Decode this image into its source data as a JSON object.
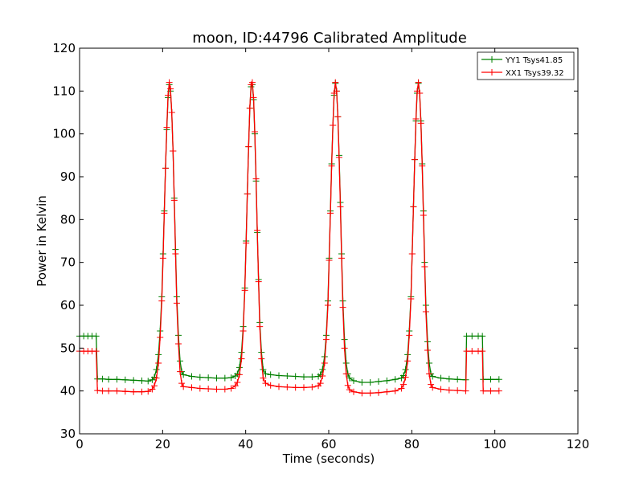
{
  "chart_data": {
    "type": "line",
    "title": "moon, ID:44796 Calibrated Amplitude",
    "xlabel": "Time (seconds)",
    "ylabel": "Power in Kelvin",
    "xlim": [
      0,
      120
    ],
    "ylim": [
      30,
      120
    ],
    "xticks": [
      "0",
      "20",
      "40",
      "60",
      "80",
      "100",
      "120"
    ],
    "yticks": [
      "30",
      "40",
      "50",
      "60",
      "70",
      "80",
      "90",
      "100",
      "110",
      "120"
    ],
    "grid": false,
    "legend_position": "top-right",
    "series": [
      {
        "name": "YY1 Tsys41.85",
        "color": "#008000",
        "points": [
          [
            0.0,
            52.8
          ],
          [
            1.0,
            52.8
          ],
          [
            2.0,
            52.8
          ],
          [
            3.0,
            52.8
          ],
          [
            4.0,
            52.8
          ],
          [
            4.3,
            42.8
          ],
          [
            5.5,
            42.8
          ],
          [
            7.0,
            42.7
          ],
          [
            9.0,
            42.7
          ],
          [
            11.0,
            42.6
          ],
          [
            13.0,
            42.5
          ],
          [
            15.0,
            42.4
          ],
          [
            16.5,
            42.3
          ],
          [
            17.5,
            42.6
          ],
          [
            18.0,
            43.2
          ],
          [
            18.5,
            45.0
          ],
          [
            19.0,
            48.5
          ],
          [
            19.4,
            54.0
          ],
          [
            19.8,
            62.0
          ],
          [
            20.1,
            72.0
          ],
          [
            20.4,
            82.0
          ],
          [
            20.7,
            92.0
          ],
          [
            21.0,
            101.0
          ],
          [
            21.3,
            108.5
          ],
          [
            21.6,
            111.5
          ],
          [
            21.9,
            110.0
          ],
          [
            22.2,
            105.0
          ],
          [
            22.5,
            96.0
          ],
          [
            22.8,
            85.0
          ],
          [
            23.1,
            73.0
          ],
          [
            23.4,
            62.0
          ],
          [
            23.8,
            53.0
          ],
          [
            24.2,
            47.0
          ],
          [
            24.6,
            44.5
          ],
          [
            25.0,
            43.8
          ],
          [
            27.0,
            43.4
          ],
          [
            29.0,
            43.2
          ],
          [
            31.0,
            43.1
          ],
          [
            33.0,
            43.0
          ],
          [
            35.0,
            43.0
          ],
          [
            36.5,
            43.1
          ],
          [
            37.5,
            43.5
          ],
          [
            38.0,
            44.0
          ],
          [
            38.5,
            45.5
          ],
          [
            39.0,
            49.0
          ],
          [
            39.4,
            55.0
          ],
          [
            39.8,
            64.0
          ],
          [
            40.1,
            75.0
          ],
          [
            40.4,
            86.0
          ],
          [
            40.7,
            97.0
          ],
          [
            41.0,
            106.0
          ],
          [
            41.3,
            111.0
          ],
          [
            41.6,
            111.5
          ],
          [
            41.9,
            108.0
          ],
          [
            42.2,
            100.0
          ],
          [
            42.5,
            89.0
          ],
          [
            42.8,
            77.0
          ],
          [
            43.1,
            66.0
          ],
          [
            43.4,
            56.0
          ],
          [
            43.8,
            49.0
          ],
          [
            44.2,
            45.0
          ],
          [
            44.8,
            44.0
          ],
          [
            46.0,
            43.8
          ],
          [
            48.0,
            43.6
          ],
          [
            50.0,
            43.5
          ],
          [
            52.0,
            43.4
          ],
          [
            54.0,
            43.3
          ],
          [
            56.0,
            43.3
          ],
          [
            57.5,
            43.4
          ],
          [
            58.0,
            43.8
          ],
          [
            58.5,
            45.0
          ],
          [
            59.0,
            48.0
          ],
          [
            59.4,
            53.0
          ],
          [
            59.8,
            61.0
          ],
          [
            60.1,
            71.0
          ],
          [
            60.4,
            82.0
          ],
          [
            60.7,
            93.0
          ],
          [
            61.0,
            102.0
          ],
          [
            61.3,
            109.0
          ],
          [
            61.6,
            111.8
          ],
          [
            61.9,
            110.0
          ],
          [
            62.2,
            104.0
          ],
          [
            62.5,
            95.0
          ],
          [
            62.8,
            84.0
          ],
          [
            63.1,
            72.0
          ],
          [
            63.4,
            61.0
          ],
          [
            63.8,
            52.0
          ],
          [
            64.2,
            46.5
          ],
          [
            64.6,
            44.0
          ],
          [
            65.0,
            43.0
          ],
          [
            66.0,
            42.4
          ],
          [
            68.0,
            42.0
          ],
          [
            70.0,
            42.0
          ],
          [
            72.0,
            42.2
          ],
          [
            74.0,
            42.4
          ],
          [
            76.0,
            42.7
          ],
          [
            77.5,
            43.0
          ],
          [
            78.0,
            43.6
          ],
          [
            78.5,
            45.0
          ],
          [
            79.0,
            48.5
          ],
          [
            79.4,
            54.0
          ],
          [
            79.8,
            62.0
          ],
          [
            80.1,
            72.0
          ],
          [
            80.4,
            83.0
          ],
          [
            80.7,
            94.0
          ],
          [
            81.0,
            103.0
          ],
          [
            81.3,
            109.5
          ],
          [
            81.6,
            111.8
          ],
          [
            81.9,
            109.5
          ],
          [
            82.2,
            103.0
          ],
          [
            82.5,
            93.0
          ],
          [
            82.8,
            82.0
          ],
          [
            83.1,
            70.0
          ],
          [
            83.4,
            60.0
          ],
          [
            83.8,
            51.5
          ],
          [
            84.2,
            46.5
          ],
          [
            84.6,
            44.0
          ],
          [
            85.0,
            43.4
          ],
          [
            87.0,
            43.0
          ],
          [
            89.0,
            42.8
          ],
          [
            91.0,
            42.7
          ],
          [
            93.0,
            42.6
          ],
          [
            93.2,
            52.8
          ],
          [
            94.5,
            52.8
          ],
          [
            96.0,
            52.8
          ],
          [
            97.0,
            52.8
          ],
          [
            97.2,
            42.7
          ],
          [
            99.0,
            42.7
          ],
          [
            101.0,
            42.7
          ]
        ]
      },
      {
        "name": "XX1 Tsys39.32",
        "color": "#ff0000",
        "points": [
          [
            0.0,
            49.3
          ],
          [
            1.0,
            49.3
          ],
          [
            2.0,
            49.3
          ],
          [
            3.0,
            49.3
          ],
          [
            4.0,
            49.3
          ],
          [
            4.3,
            40.1
          ],
          [
            5.5,
            40.0
          ],
          [
            7.0,
            40.0
          ],
          [
            9.0,
            40.0
          ],
          [
            11.0,
            39.9
          ],
          [
            13.0,
            39.8
          ],
          [
            15.0,
            39.8
          ],
          [
            16.5,
            39.9
          ],
          [
            17.5,
            40.4
          ],
          [
            18.0,
            41.2
          ],
          [
            18.5,
            43.0
          ],
          [
            19.0,
            46.5
          ],
          [
            19.4,
            52.5
          ],
          [
            19.8,
            61.0
          ],
          [
            20.1,
            71.0
          ],
          [
            20.4,
            81.5
          ],
          [
            20.7,
            92.0
          ],
          [
            21.0,
            101.5
          ],
          [
            21.3,
            109.0
          ],
          [
            21.6,
            112.0
          ],
          [
            21.9,
            110.5
          ],
          [
            22.2,
            105.0
          ],
          [
            22.5,
            96.0
          ],
          [
            22.8,
            84.5
          ],
          [
            23.1,
            72.0
          ],
          [
            23.4,
            60.5
          ],
          [
            23.8,
            51.0
          ],
          [
            24.2,
            44.5
          ],
          [
            24.6,
            41.8
          ],
          [
            25.0,
            41.0
          ],
          [
            27.0,
            40.8
          ],
          [
            29.0,
            40.6
          ],
          [
            31.0,
            40.5
          ],
          [
            33.0,
            40.4
          ],
          [
            35.0,
            40.4
          ],
          [
            36.5,
            40.6
          ],
          [
            37.5,
            41.2
          ],
          [
            38.0,
            42.0
          ],
          [
            38.5,
            43.8
          ],
          [
            39.0,
            47.5
          ],
          [
            39.4,
            54.0
          ],
          [
            39.8,
            63.5
          ],
          [
            40.1,
            74.5
          ],
          [
            40.4,
            86.0
          ],
          [
            40.7,
            97.0
          ],
          [
            41.0,
            106.0
          ],
          [
            41.3,
            111.5
          ],
          [
            41.6,
            112.0
          ],
          [
            41.9,
            108.5
          ],
          [
            42.2,
            100.5
          ],
          [
            42.5,
            89.5
          ],
          [
            42.8,
            77.5
          ],
          [
            43.1,
            65.5
          ],
          [
            43.4,
            55.0
          ],
          [
            43.8,
            47.5
          ],
          [
            44.2,
            43.0
          ],
          [
            44.8,
            41.8
          ],
          [
            46.0,
            41.3
          ],
          [
            48.0,
            41.0
          ],
          [
            50.0,
            40.9
          ],
          [
            52.0,
            40.8
          ],
          [
            54.0,
            40.8
          ],
          [
            56.0,
            40.9
          ],
          [
            57.5,
            41.2
          ],
          [
            58.0,
            41.8
          ],
          [
            58.5,
            43.5
          ],
          [
            59.0,
            46.5
          ],
          [
            59.4,
            52.0
          ],
          [
            59.8,
            60.0
          ],
          [
            60.1,
            70.5
          ],
          [
            60.4,
            81.5
          ],
          [
            60.7,
            92.5
          ],
          [
            61.0,
            102.0
          ],
          [
            61.3,
            109.5
          ],
          [
            61.6,
            112.0
          ],
          [
            61.9,
            110.0
          ],
          [
            62.2,
            104.0
          ],
          [
            62.5,
            94.5
          ],
          [
            62.8,
            83.0
          ],
          [
            63.1,
            71.0
          ],
          [
            63.4,
            59.5
          ],
          [
            63.8,
            50.0
          ],
          [
            64.2,
            44.0
          ],
          [
            64.6,
            41.3
          ],
          [
            65.0,
            40.3
          ],
          [
            66.0,
            39.8
          ],
          [
            68.0,
            39.5
          ],
          [
            70.0,
            39.5
          ],
          [
            72.0,
            39.6
          ],
          [
            74.0,
            39.8
          ],
          [
            76.0,
            40.0
          ],
          [
            77.5,
            40.6
          ],
          [
            78.0,
            41.5
          ],
          [
            78.5,
            43.2
          ],
          [
            79.0,
            47.0
          ],
          [
            79.4,
            53.0
          ],
          [
            79.8,
            61.5
          ],
          [
            80.1,
            72.0
          ],
          [
            80.4,
            83.0
          ],
          [
            80.7,
            94.0
          ],
          [
            81.0,
            103.5
          ],
          [
            81.3,
            110.0
          ],
          [
            81.6,
            112.0
          ],
          [
            81.9,
            109.5
          ],
          [
            82.2,
            102.5
          ],
          [
            82.5,
            92.5
          ],
          [
            82.8,
            81.0
          ],
          [
            83.1,
            69.0
          ],
          [
            83.4,
            58.5
          ],
          [
            83.8,
            49.5
          ],
          [
            84.2,
            44.0
          ],
          [
            84.6,
            41.5
          ],
          [
            85.0,
            40.8
          ],
          [
            87.0,
            40.4
          ],
          [
            89.0,
            40.2
          ],
          [
            91.0,
            40.1
          ],
          [
            93.0,
            40.0
          ],
          [
            93.2,
            49.3
          ],
          [
            94.5,
            49.3
          ],
          [
            96.0,
            49.3
          ],
          [
            97.0,
            49.3
          ],
          [
            97.2,
            40.0
          ],
          [
            99.0,
            40.0
          ],
          [
            101.0,
            40.0
          ]
        ]
      }
    ]
  }
}
